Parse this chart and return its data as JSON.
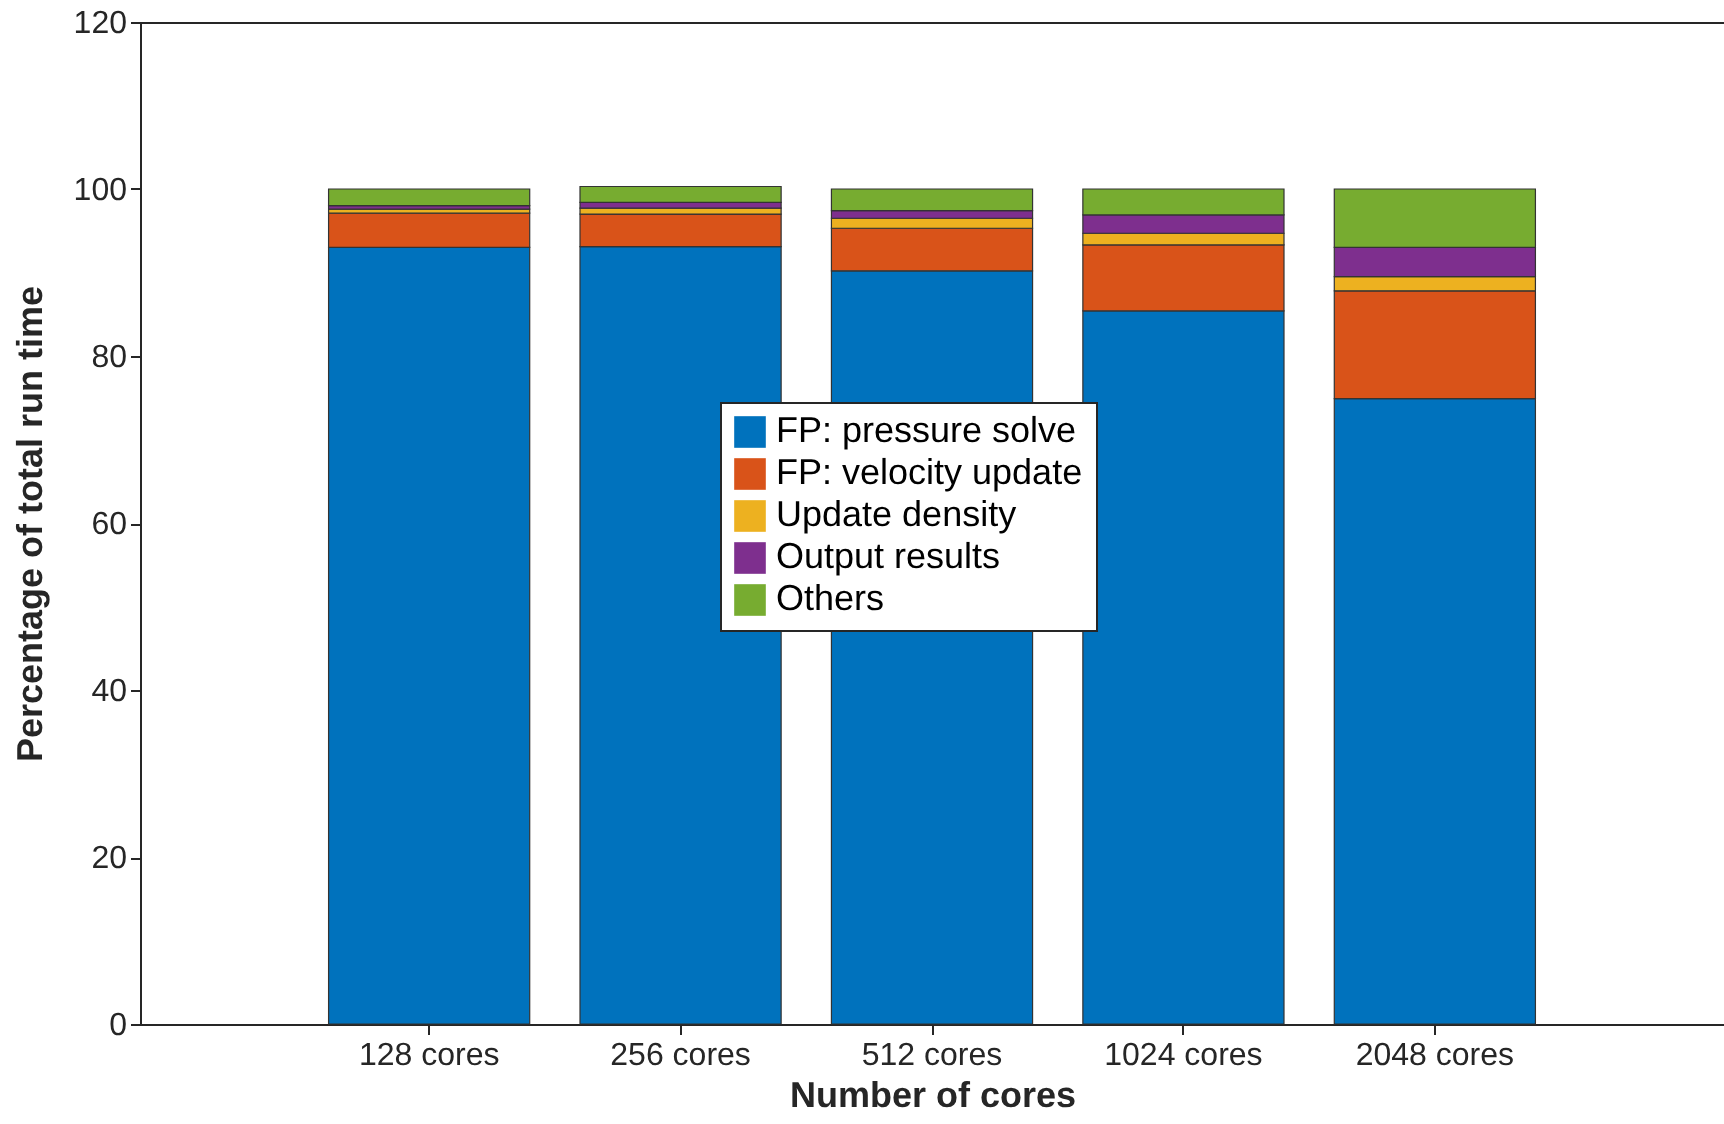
{
  "chart_data": {
    "type": "bar",
    "stacked": true,
    "xlabel": "Number of cores",
    "ylabel": "Percentage of total run time",
    "categories": [
      "128 cores",
      "256 cores",
      "512 cores",
      "1024 cores",
      "2048 cores"
    ],
    "series": [
      {
        "name": "FP: pressure solve",
        "color": "#0072bd",
        "values": [
          93.0,
          93.1,
          90.2,
          85.4,
          74.9
        ]
      },
      {
        "name": "FP: velocity update",
        "color": "#d95319",
        "values": [
          4.1,
          3.9,
          5.1,
          7.9,
          12.9
        ]
      },
      {
        "name": "Update density",
        "color": "#edb120",
        "values": [
          0.5,
          0.7,
          1.2,
          1.4,
          1.7
        ]
      },
      {
        "name": "Output results",
        "color": "#7e2f8e",
        "values": [
          0.4,
          0.7,
          0.9,
          2.2,
          3.5
        ]
      },
      {
        "name": "Others",
        "color": "#77ac30",
        "values": [
          2.0,
          1.9,
          2.6,
          3.1,
          7.0
        ]
      }
    ],
    "ylim": [
      0,
      120
    ],
    "yticks": [
      0,
      20,
      40,
      60,
      80,
      100,
      120
    ],
    "grid": false,
    "legend": "center"
  }
}
